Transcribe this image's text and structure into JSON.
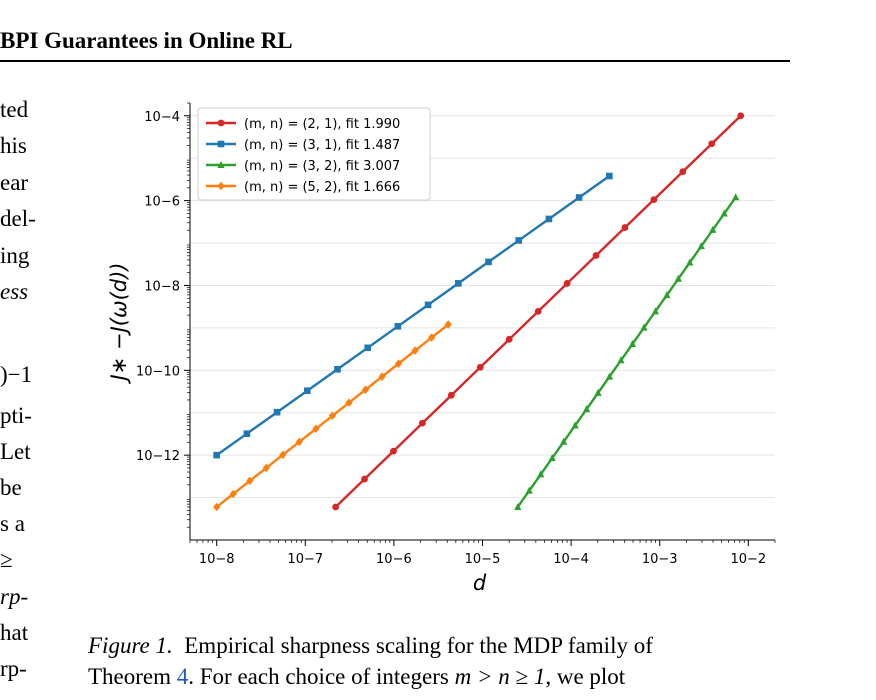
{
  "header": {
    "title": "BPI Guarantees in Online RL"
  },
  "left_column": {
    "fragments": [
      "ted",
      "his",
      "ear",
      "del-",
      "ing",
      "ess",
      ")−1",
      "pti-",
      "Let",
      "be",
      "s a",
      "≥",
      "rp-",
      "hat",
      "rp-"
    ]
  },
  "caption": {
    "label": "Figure 1.",
    "line1": "Empirical sharpness scaling for the MDP family of",
    "line2_pre": "Theorem ",
    "ref": "4",
    "line2_post": ". For each choice of integers ",
    "math": "m > n ≥ 1",
    "line2_end": ", we plot"
  },
  "chart_data": {
    "type": "line",
    "log_x": true,
    "log_y": true,
    "xlabel": "d",
    "ylabel": "J∗ −J(ω(d))",
    "xlim": [
      5e-09,
      0.02
    ],
    "ylim": [
      1e-14,
      0.0002
    ],
    "x_ticks": [
      "10−8",
      "10−7",
      "10−6",
      "10−5",
      "10−4",
      "10−3",
      "10−2"
    ],
    "y_ticks": [
      "10−12",
      "10−10",
      "10−8",
      "10−6",
      "10−4"
    ],
    "grid": "horizontal",
    "legend_position": "top-left",
    "series": [
      {
        "name": "(m, n) = (2, 1), fit 1.990",
        "color": "#d62728",
        "marker": "circle",
        "x_range": [
          2.2e-07,
          0.0082
        ],
        "y_range": [
          6e-14,
          0.0001
        ],
        "n_points": 15
      },
      {
        "name": "(m, n) = (3, 1), fit 1.487",
        "color": "#1f77b4",
        "marker": "square",
        "x_range": [
          1e-08,
          0.00027
        ],
        "y_range": [
          1e-12,
          3.8e-06
        ],
        "n_points": 14
      },
      {
        "name": "(m, n) = (3, 2), fit 3.007",
        "color": "#2ca02c",
        "marker": "triangle",
        "x_range": [
          2.5e-05,
          0.0072
        ],
        "y_range": [
          6e-14,
          1.2e-06
        ],
        "n_points": 20
      },
      {
        "name": "(m, n) = (5, 2), fit 1.666",
        "color": "#ff7f0e",
        "marker": "diamond",
        "x_range": [
          1e-08,
          4.1e-06
        ],
        "y_range": [
          6e-14,
          1.2e-09
        ],
        "n_points": 15
      }
    ]
  }
}
